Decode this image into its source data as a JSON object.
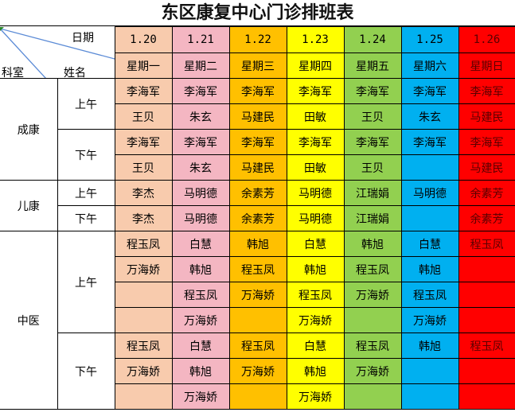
{
  "title": "东区康复中心门诊排班表",
  "corner": {
    "date_label": "日期",
    "dept_label": "科室",
    "name_label": "姓名"
  },
  "dates": [
    "1.20",
    "1.21",
    "1.22",
    "1.23",
    "1.24",
    "1.25",
    "1.26"
  ],
  "weekdays": [
    "星期一",
    "星期二",
    "星期三",
    "星期四",
    "星期五",
    "星期六",
    "星期日"
  ],
  "column_colors": [
    "#f8cbad",
    "#f4b6c2",
    "#ffc000",
    "#ffff00",
    "#92d050",
    "#00b0f0",
    "#ff0000"
  ],
  "departments": [
    {
      "name": "成康",
      "periods": [
        {
          "name": "上午",
          "rows": [
            [
              "李海军",
              "李海军",
              "李海军",
              "李海军",
              "李海军",
              "李海军",
              "李海军"
            ],
            [
              "王贝",
              "朱玄",
              "马建民",
              "田敏",
              "王贝",
              "朱玄",
              "马建民"
            ]
          ]
        },
        {
          "name": "下午",
          "rows": [
            [
              "李海军",
              "李海军",
              "李海军",
              "李海军",
              "李海军",
              "李海军",
              "李海军"
            ],
            [
              "王贝",
              "朱玄",
              "马建民",
              "田敏",
              "王贝",
              "",
              "马建民"
            ]
          ]
        }
      ]
    },
    {
      "name": "儿康",
      "periods": [
        {
          "name": "上午",
          "rows": [
            [
              "李杰",
              "马明德",
              "余素芳",
              "马明德",
              "江瑞娟",
              "马明德",
              "余素芳"
            ]
          ]
        },
        {
          "name": "下午",
          "rows": [
            [
              "李杰",
              "马明德",
              "余素芳",
              "马明德",
              "江瑞娟",
              "",
              "余素芳"
            ]
          ]
        }
      ]
    },
    {
      "name": "中医",
      "periods": [
        {
          "name": "上午",
          "rows": [
            [
              "程玉凤",
              "白慧",
              "韩旭",
              "白慧",
              "韩旭",
              "白慧",
              "程玉凤"
            ],
            [
              "万海娇",
              "韩旭",
              "程玉凤",
              "韩旭",
              "程玉凤",
              "韩旭",
              ""
            ],
            [
              "",
              "程玉凤",
              "万海娇",
              "程玉凤",
              "万海娇",
              "程玉凤",
              ""
            ],
            [
              "",
              "万海娇",
              "",
              "万海娇",
              "",
              "万海娇",
              ""
            ]
          ]
        },
        {
          "name": "下午",
          "rows": [
            [
              "程玉凤",
              "白慧",
              "程玉凤",
              "白慧",
              "程玉凤",
              "韩旭",
              "程玉凤"
            ],
            [
              "万海娇",
              "韩旭",
              "万海娇",
              "韩旭",
              "万海娇",
              "",
              ""
            ],
            [
              "",
              "万海娇",
              "",
              "万海娇",
              "",
              "",
              ""
            ]
          ]
        }
      ]
    }
  ]
}
